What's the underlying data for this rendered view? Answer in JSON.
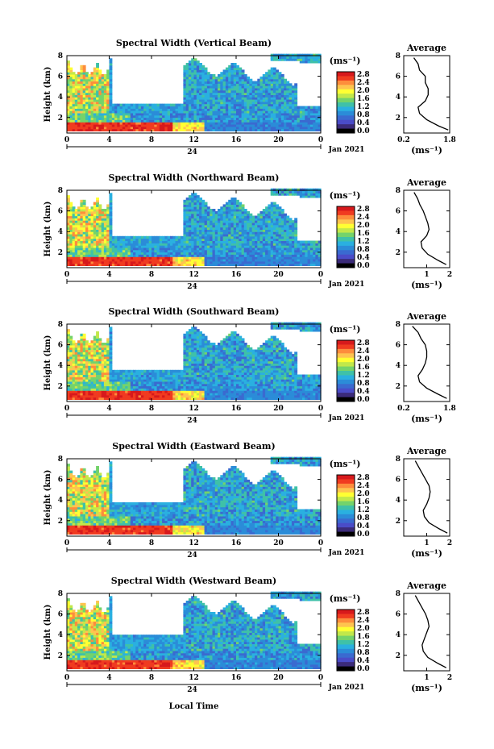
{
  "figure": {
    "xlabel": "Local Time",
    "date_label": "Jan 2021",
    "day_label": "24",
    "colorbar_unit": "(ms⁻¹)",
    "colorbar_ticks": [
      "2.8",
      "2.4",
      "2.0",
      "1.6",
      "1.2",
      "0.8",
      "0.4",
      "0.0"
    ],
    "colorbar_scale": [
      "#d7191c",
      "#f03b20",
      "#fd8d3c",
      "#fec44f",
      "#ffff33",
      "#c2e84a",
      "#74d36b",
      "#3fc1a8",
      "#2ab0e0",
      "#2b8cd8",
      "#3a6ad0",
      "#4a4cc8",
      "#3b2b7a",
      "#000000"
    ]
  },
  "chart_data": [
    {
      "type": "heatmap",
      "title": "Spectral Width (Vertical Beam)",
      "ylabel": "Height (km)",
      "x_ticks": [
        "0",
        "4",
        "8",
        "12",
        "16",
        "20",
        "0"
      ],
      "y_ticks": [
        "8",
        "6",
        "4",
        "2"
      ],
      "xlim": [
        0,
        24
      ],
      "ylim": [
        0.5,
        8
      ],
      "colorbar_range": [
        0.0,
        3.0
      ],
      "profile": {
        "title": "Average",
        "xlabel": "(ms⁻¹)",
        "x_ticks": [
          "0.2",
          "1.8"
        ],
        "xlim": [
          0.2,
          1.8
        ],
        "ylim": [
          0.5,
          8
        ],
        "y_ticks": [
          "8",
          "6",
          "4",
          "2"
        ],
        "height_km": [
          7.8,
          7.2,
          6.6,
          6.0,
          5.4,
          4.8,
          4.2,
          3.6,
          3.0,
          2.4,
          1.8,
          1.2,
          0.8
        ],
        "value": [
          0.55,
          0.7,
          0.75,
          0.95,
          0.95,
          1.05,
          1.05,
          0.95,
          0.7,
          0.75,
          1.0,
          1.4,
          1.75
        ]
      }
    },
    {
      "type": "heatmap",
      "title": "Spectral Width (Northward Beam)",
      "ylabel": "Height (km)",
      "x_ticks": [
        "0",
        "4",
        "8",
        "12",
        "16",
        "20",
        "0"
      ],
      "y_ticks": [
        "8",
        "6",
        "4",
        "2"
      ],
      "xlim": [
        0,
        24
      ],
      "ylim": [
        0.5,
        8
      ],
      "colorbar_range": [
        0.0,
        3.0
      ],
      "profile": {
        "title": "Average",
        "xlabel": "(ms⁻¹)",
        "x_ticks": [
          "1",
          "2"
        ],
        "xlim": [
          0,
          2
        ],
        "ylim": [
          0.5,
          8
        ],
        "y_ticks": [
          "8",
          "6",
          "4",
          "2"
        ],
        "height_km": [
          7.8,
          7.2,
          6.6,
          6.0,
          5.4,
          4.8,
          4.2,
          3.6,
          3.0,
          2.4,
          1.8,
          1.2,
          0.8
        ],
        "value": [
          0.45,
          0.6,
          0.7,
          0.85,
          0.95,
          1.05,
          1.1,
          1.0,
          0.75,
          0.8,
          1.05,
          1.5,
          1.85
        ]
      }
    },
    {
      "type": "heatmap",
      "title": "Spectral Width (Southward Beam)",
      "ylabel": "Height (km)",
      "x_ticks": [
        "0",
        "4",
        "8",
        "12",
        "16",
        "20",
        "0"
      ],
      "y_ticks": [
        "8",
        "6",
        "4",
        "2"
      ],
      "xlim": [
        0,
        24
      ],
      "ylim": [
        0.5,
        8
      ],
      "colorbar_range": [
        0.0,
        3.0
      ],
      "profile": {
        "title": "Average",
        "xlabel": "(ms⁻¹)",
        "x_ticks": [
          "0.2",
          "1.8"
        ],
        "xlim": [
          0.2,
          1.8
        ],
        "ylim": [
          0.5,
          8
        ],
        "y_ticks": [
          "8",
          "6",
          "4",
          "2"
        ],
        "height_km": [
          7.8,
          7.2,
          6.6,
          6.0,
          5.4,
          4.8,
          4.2,
          3.6,
          3.0,
          2.4,
          1.8,
          1.2,
          0.8
        ],
        "value": [
          0.5,
          0.7,
          0.8,
          0.95,
          1.0,
          1.0,
          0.95,
          0.85,
          0.7,
          0.75,
          1.0,
          1.4,
          1.7
        ]
      }
    },
    {
      "type": "heatmap",
      "title": "Spectral Width (Eastward Beam)",
      "ylabel": "Height (km)",
      "x_ticks": [
        "0",
        "4",
        "8",
        "12",
        "16",
        "20",
        "0"
      ],
      "y_ticks": [
        "8",
        "6",
        "4",
        "2"
      ],
      "xlim": [
        0,
        24
      ],
      "ylim": [
        0.5,
        8
      ],
      "colorbar_range": [
        0.0,
        3.0
      ],
      "profile": {
        "title": "Average",
        "xlabel": "(ms⁻¹)",
        "x_ticks": [
          "1",
          "2"
        ],
        "xlim": [
          0,
          2
        ],
        "ylim": [
          0.5,
          8
        ],
        "y_ticks": [
          "8",
          "6",
          "4",
          "2"
        ],
        "height_km": [
          7.8,
          7.2,
          6.6,
          6.0,
          5.4,
          4.8,
          4.2,
          3.6,
          3.0,
          2.4,
          1.8,
          1.2,
          0.8
        ],
        "value": [
          0.5,
          0.65,
          0.8,
          0.95,
          1.1,
          1.15,
          1.1,
          1.0,
          0.85,
          0.9,
          1.1,
          1.55,
          1.9
        ]
      }
    },
    {
      "type": "heatmap",
      "title": "Spectral Width (Westward Beam)",
      "ylabel": "Height (km)",
      "x_ticks": [
        "0",
        "4",
        "8",
        "12",
        "16",
        "20",
        "0"
      ],
      "y_ticks": [
        "8",
        "6",
        "4",
        "2"
      ],
      "xlim": [
        0,
        24
      ],
      "ylim": [
        0.5,
        8
      ],
      "colorbar_range": [
        0.0,
        3.0
      ],
      "profile": {
        "title": "Average",
        "xlabel": "(ms⁻¹)",
        "x_ticks": [
          "1",
          "2"
        ],
        "xlim": [
          0,
          2
        ],
        "ylim": [
          0.5,
          8
        ],
        "y_ticks": [
          "8",
          "6",
          "4",
          "2"
        ],
        "height_km": [
          7.8,
          7.2,
          6.6,
          6.0,
          5.4,
          4.8,
          4.2,
          3.6,
          3.0,
          2.4,
          1.8,
          1.2,
          0.8
        ],
        "value": [
          0.5,
          0.65,
          0.8,
          0.95,
          1.05,
          1.1,
          1.0,
          0.9,
          0.8,
          0.85,
          1.05,
          1.5,
          1.85
        ]
      }
    }
  ]
}
